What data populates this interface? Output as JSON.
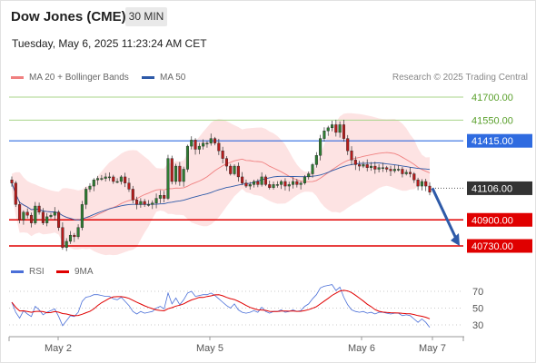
{
  "header": {
    "title": "Dow Jones (CME)",
    "timeframe": "30 MIN",
    "datetime": "Tuesday, May 6, 2025 11:23:24 AM CET"
  },
  "legend": {
    "ma20_label": "MA 20 + Bollinger Bands",
    "ma20_color": "#f08080",
    "ma50_label": "MA 50",
    "ma50_color": "#2e5aa8",
    "copyright": "Research © 2025 Trading Central"
  },
  "price_levels": [
    {
      "label": "41700.00",
      "value": 41700,
      "style": "resistance-text",
      "color": "#5aa02c"
    },
    {
      "label": "41550.00",
      "value": 41550,
      "style": "resistance-text",
      "color": "#5aa02c"
    },
    {
      "label": "41415.00",
      "value": 41415,
      "style": "pivot-box",
      "color": "#2f6be0"
    },
    {
      "label": "41106.00",
      "value": 41106,
      "style": "last-box",
      "color": "#333333"
    },
    {
      "label": "40900.00",
      "value": 40900,
      "style": "support-box",
      "color": "#e00000"
    },
    {
      "label": "40730.00",
      "value": 40730,
      "style": "support-box",
      "color": "#e00000"
    }
  ],
  "rsi_legend": {
    "rsi_label": "RSI",
    "rsi_color": "#4a6fd8",
    "ma9_label": "9MA",
    "ma9_color": "#e00000"
  },
  "rsi_levels": [
    "70",
    "50",
    "30"
  ],
  "x_axis_labels": [
    "May 2",
    "May 5",
    "May 6",
    "May 7"
  ],
  "chart_data": {
    "type": "candlestick",
    "xlabel": "",
    "ylabel": "",
    "ylim": [
      40680,
      41780
    ],
    "rsi_ylim": [
      15,
      85
    ],
    "closes": [
      41140,
      41000,
      40900,
      40950,
      40930,
      40880,
      40990,
      40950,
      40880,
      40920,
      40930,
      40950,
      40850,
      40720,
      40760,
      40800,
      40790,
      40850,
      41000,
      41100,
      41120,
      41160,
      41170,
      41170,
      41180,
      41180,
      41150,
      41150,
      41180,
      41140,
      41100,
      41030,
      41000,
      41020,
      41000,
      41000,
      41010,
      41040,
      41060,
      41040,
      41300,
      41150,
      41250,
      41150,
      41230,
      41380,
      41420,
      41360,
      41380,
      41400,
      41400,
      41430,
      41400,
      41350,
      41300,
      41250,
      41200,
      41250,
      41180,
      41140,
      41120,
      41130,
      41150,
      41130,
      41180,
      41130,
      41110,
      41130,
      41130,
      41150,
      41120,
      41130,
      41150,
      41130,
      41140,
      41180,
      41200,
      41260,
      41320,
      41430,
      41480,
      41500,
      41520,
      41470,
      41520,
      41430,
      41350,
      41290,
      41260,
      41250,
      41260,
      41240,
      41250,
      41230,
      41240,
      41240,
      41230,
      41220,
      41230,
      41230,
      41200,
      41210,
      41200,
      41160,
      41120,
      41150,
      41120,
      41080
    ],
    "rsi": [
      57,
      45,
      38,
      47,
      43,
      40,
      52,
      48,
      42,
      45,
      47,
      49,
      40,
      29,
      35,
      41,
      40,
      45,
      58,
      63,
      64,
      66,
      66,
      65,
      64,
      64,
      61,
      60,
      63,
      58,
      53,
      46,
      43,
      46,
      44,
      45,
      46,
      50,
      52,
      49,
      68,
      55,
      62,
      54,
      60,
      68,
      70,
      64,
      65,
      66,
      66,
      68,
      65,
      61,
      57,
      53,
      50,
      55,
      48,
      45,
      44,
      45,
      47,
      45,
      51,
      46,
      44,
      46,
      46,
      48,
      45,
      46,
      48,
      46,
      47,
      52,
      55,
      61,
      66,
      74,
      76,
      77,
      78,
      71,
      75,
      63,
      54,
      48,
      46,
      45,
      46,
      44,
      45,
      43,
      45,
      45,
      44,
      43,
      44,
      44,
      41,
      42,
      41,
      37,
      33,
      37,
      33,
      27
    ],
    "forecast": {
      "from": 41106,
      "to": 40730
    }
  }
}
